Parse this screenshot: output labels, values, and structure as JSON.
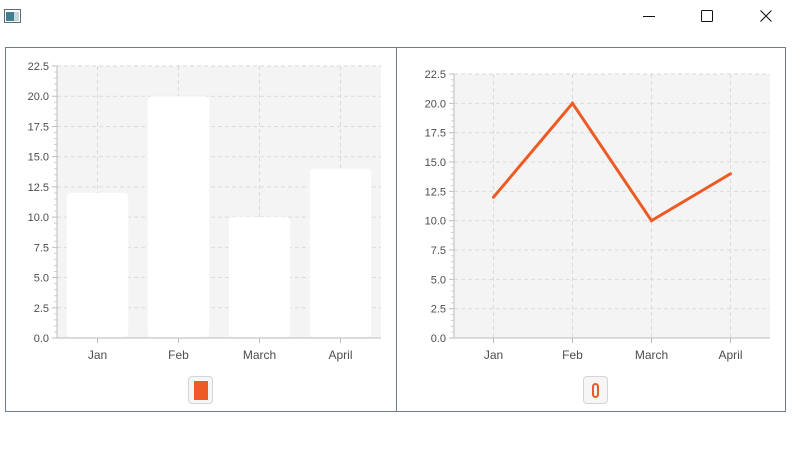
{
  "window": {
    "icon": "java-app-icon",
    "controls": [
      "minimize-icon",
      "maximize-icon",
      "close-icon"
    ]
  },
  "colors": {
    "accent": "#ee5a24",
    "plot_background": "#f4f4f4",
    "grid": "#dadada",
    "bar_fill": "#ffffff",
    "border": "#6e7d87"
  },
  "chart_data": [
    {
      "type": "bar",
      "categories": [
        "Jan",
        "Feb",
        "March",
        "April"
      ],
      "values": [
        12,
        20,
        10,
        14
      ],
      "ylim": [
        0,
        22.5
      ],
      "yticks": [
        "0.0",
        "2.5",
        "5.0",
        "7.5",
        "10.0",
        "12.5",
        "15.0",
        "17.5",
        "20.0",
        "22.5"
      ],
      "grid": true,
      "legend_position": "bottom"
    },
    {
      "type": "line",
      "categories": [
        "Jan",
        "Feb",
        "March",
        "April"
      ],
      "values": [
        12,
        20,
        10,
        14
      ],
      "ylim": [
        0,
        22.5
      ],
      "yticks": [
        "0.0",
        "2.5",
        "5.0",
        "7.5",
        "10.0",
        "12.5",
        "15.0",
        "17.5",
        "20.0",
        "22.5"
      ],
      "grid": true,
      "legend_position": "bottom"
    }
  ]
}
